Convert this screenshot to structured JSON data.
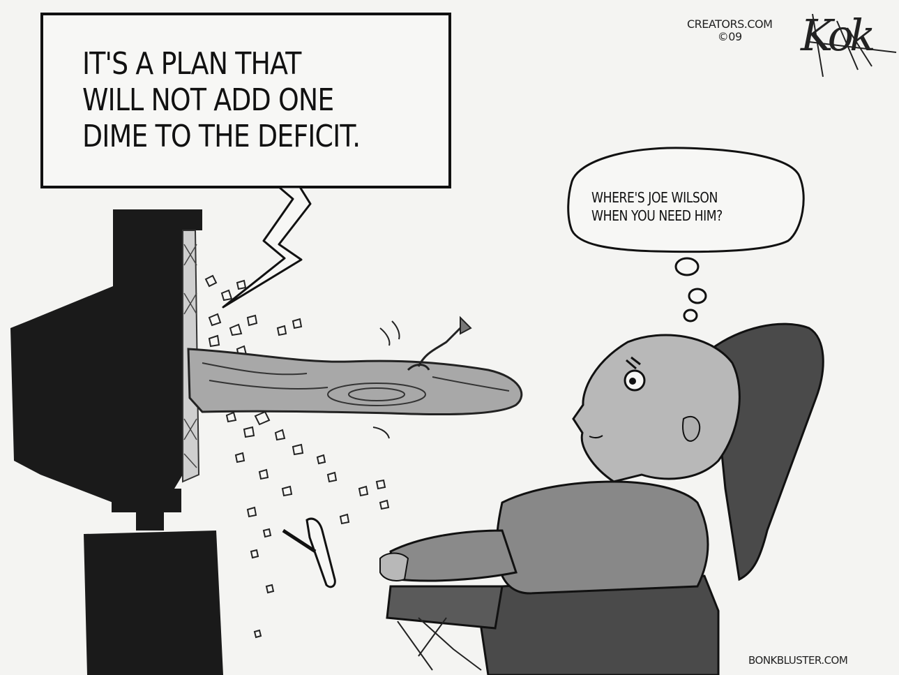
{
  "speech_bubble": {
    "lines": [
      "IT'S A PLAN THAT",
      "WILL NOT ADD ONE",
      "DIME TO THE DEFICIT."
    ]
  },
  "thought_bubble": {
    "lines": [
      "WHERE'S JOE WILSON",
      "WHEN YOU NEED HIM?"
    ]
  },
  "credit": {
    "line1": "CREATORS.COM",
    "line2": "©09",
    "signature": "Kok"
  },
  "footer": {
    "site": "BONKBLUSTER.COM"
  },
  "colors": {
    "background": "#f4f4f2",
    "ink": "#111111",
    "tv": "#1a1a1a",
    "chair": "#4a4a4a",
    "skin": "#b8b8b8",
    "clothes": "#888888",
    "tongue": "#a8a8a8"
  }
}
